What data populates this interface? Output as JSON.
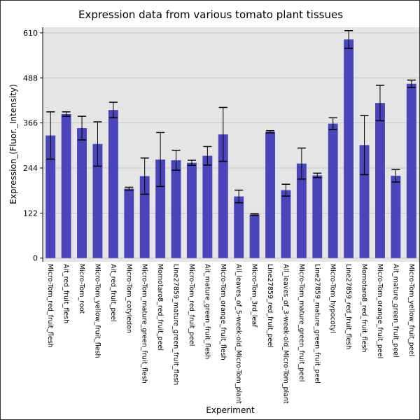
{
  "chart_data": {
    "type": "bar",
    "title": "Expression data from various tomato plant tissues",
    "xlabel": "Experiment",
    "ylabel": "Expression_(Fluor._Intensity)",
    "ylim": [
      -10,
      625
    ],
    "yticks": [
      0,
      122,
      244,
      366,
      488,
      610
    ],
    "grid": true,
    "bar_color": "#4a45b8",
    "plot_background": "#e5e5e5",
    "categories": [
      "Micro-Tom_red_fruit_flesh",
      "Ait_red_fruit_flesh",
      "Micro-Tom_root",
      "Micro-Tom_yellow_fruit_flesh",
      "Ait_red_fruit_peel",
      "Micro-Tom_cotyledon",
      "Micro-Tom_mature_green_fruit_flesh",
      "Momotaro8_red_fruit_peel",
      "Line27859_mature_green_fruit_flesh",
      "Micro-Tom_red_fruit_peel",
      "Ait_mature_green_fruit_flesh",
      "Micro-Tom_orange_fruit_flesh",
      "All_leaves_of_5-week-old_Micro-Tom_plant",
      "Micro-Tom_3rd_leaf",
      "Line27859_red_fruit_peel",
      "All_leaves_of_3-week-old_Micro-Tom_plant",
      "Micro-Tom_mature_green_fruit_peel",
      "Line27859_mature_green_fruit_peel",
      "Micro-Tom_hypocotyl",
      "Line27859_red_fruit_flesh",
      "Momotaro8_red_fruit_flesh",
      "Micro-Tom_orange_fruit_peel",
      "Ait_mature_green_fruit_peel",
      "Micro-Tom_yellow_fruit_peel"
    ],
    "values": [
      332,
      390,
      352,
      309,
      401,
      188,
      222,
      267,
      265,
      258,
      277,
      335,
      167,
      118,
      342,
      184,
      256,
      224,
      364,
      592,
      306,
      420,
      223,
      472
    ],
    "errors": [
      64,
      6,
      32,
      60,
      21,
      4,
      49,
      73,
      27,
      7,
      25,
      73,
      17,
      2,
      3,
      16,
      42,
      6,
      16,
      24,
      80,
      48,
      17,
      10
    ]
  }
}
